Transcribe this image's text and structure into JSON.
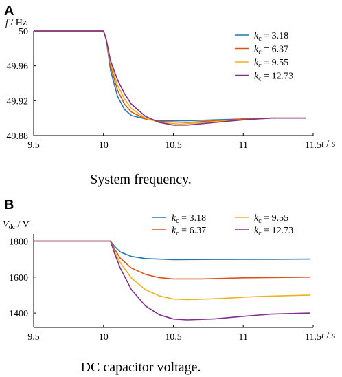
{
  "chart_data": [
    {
      "panel_label": "A",
      "type": "line",
      "caption": "System frequency.",
      "ylabel_symbol": "f",
      "ylabel_unit": " / Hz",
      "xlabel_symbol": "t",
      "xlabel_unit": " / s",
      "xlim": [
        9.5,
        11.5
      ],
      "ylim": [
        49.88,
        50.0
      ],
      "x_ticks": [
        "9.5",
        "10",
        "10.5",
        "11",
        "11.5"
      ],
      "x_tick_values": [
        9.5,
        10,
        10.5,
        11,
        11.5
      ],
      "y_ticks": [
        "50",
        "49.96",
        "49.92",
        "49.88"
      ],
      "y_tick_values": [
        50.0,
        49.96,
        49.92,
        49.88
      ],
      "grid": false,
      "legend_position": "top-right",
      "legend_layout": "column",
      "series": [
        {
          "name_sym": "k",
          "name_sub": "c",
          "name_val": " = 3.18",
          "color": "#1f77b4",
          "points": [
            [
              9.5,
              50.0
            ],
            [
              10.0,
              50.0
            ],
            [
              10.02,
              49.99
            ],
            [
              10.05,
              49.955
            ],
            [
              10.1,
              49.925
            ],
            [
              10.15,
              49.91
            ],
            [
              10.2,
              49.903
            ],
            [
              10.3,
              49.899
            ],
            [
              10.4,
              49.897
            ],
            [
              10.6,
              49.897
            ],
            [
              10.8,
              49.898
            ],
            [
              11.0,
              49.899
            ],
            [
              11.2,
              49.9
            ],
            [
              11.45,
              49.9
            ]
          ]
        },
        {
          "name_sym": "k",
          "name_sub": "c",
          "name_val": " = 6.37",
          "color": "#d95319",
          "points": [
            [
              9.5,
              50.0
            ],
            [
              10.0,
              50.0
            ],
            [
              10.02,
              49.99
            ],
            [
              10.05,
              49.96
            ],
            [
              10.1,
              49.932
            ],
            [
              10.15,
              49.916
            ],
            [
              10.2,
              49.907
            ],
            [
              10.3,
              49.899
            ],
            [
              10.4,
              49.896
            ],
            [
              10.6,
              49.895
            ],
            [
              10.8,
              49.897
            ],
            [
              11.0,
              49.899
            ],
            [
              11.2,
              49.9
            ],
            [
              11.45,
              49.9
            ]
          ]
        },
        {
          "name_sym": "k",
          "name_sub": "c",
          "name_val": " = 9.55",
          "color": "#edb120",
          "points": [
            [
              9.5,
              50.0
            ],
            [
              10.0,
              50.0
            ],
            [
              10.02,
              49.99
            ],
            [
              10.05,
              49.963
            ],
            [
              10.1,
              49.938
            ],
            [
              10.15,
              49.922
            ],
            [
              10.2,
              49.911
            ],
            [
              10.3,
              49.9
            ],
            [
              10.4,
              49.895
            ],
            [
              10.55,
              49.893
            ],
            [
              10.8,
              49.896
            ],
            [
              11.0,
              49.898
            ],
            [
              11.2,
              49.9
            ],
            [
              11.45,
              49.9
            ]
          ]
        },
        {
          "name_sym": "k",
          "name_sub": "c",
          "name_val": " = 12.73",
          "color": "#7e2f8e",
          "points": [
            [
              9.5,
              50.0
            ],
            [
              10.0,
              50.0
            ],
            [
              10.02,
              49.99
            ],
            [
              10.05,
              49.966
            ],
            [
              10.1,
              49.944
            ],
            [
              10.15,
              49.928
            ],
            [
              10.2,
              49.916
            ],
            [
              10.3,
              49.902
            ],
            [
              10.4,
              49.895
            ],
            [
              10.5,
              49.892
            ],
            [
              10.6,
              49.892
            ],
            [
              10.8,
              49.895
            ],
            [
              11.0,
              49.898
            ],
            [
              11.2,
              49.9
            ],
            [
              11.45,
              49.9
            ]
          ]
        }
      ]
    },
    {
      "panel_label": "B",
      "type": "line",
      "caption": "DC capacitor voltage.",
      "ylabel_symbol": "V",
      "ylabel_sub": "dc",
      "ylabel_unit": " / V",
      "xlabel_symbol": "t",
      "xlabel_unit": " / s",
      "xlim": [
        9.5,
        11.5
      ],
      "ylim": [
        1320,
        1840
      ],
      "x_ticks": [
        "9.5",
        "10",
        "10.5",
        "11",
        "11.5"
      ],
      "x_tick_values": [
        9.5,
        10,
        10.5,
        11,
        11.5
      ],
      "y_ticks": [
        "1800",
        "1600",
        "1400"
      ],
      "y_tick_values": [
        1800,
        1600,
        1400
      ],
      "grid": false,
      "legend_position": "top-right",
      "legend_layout": "two-columns",
      "series": [
        {
          "name_sym": "k",
          "name_sub": "c",
          "name_val": " = 3.18",
          "color": "#1f77b4",
          "points": [
            [
              9.5,
              1800
            ],
            [
              10.05,
              1800
            ],
            [
              10.08,
              1770
            ],
            [
              10.12,
              1740
            ],
            [
              10.2,
              1715
            ],
            [
              10.3,
              1703
            ],
            [
              10.5,
              1697
            ],
            [
              10.8,
              1698
            ],
            [
              11.2,
              1699
            ],
            [
              11.48,
              1700
            ]
          ]
        },
        {
          "name_sym": "k",
          "name_sub": "c",
          "name_val": " = 6.37",
          "color": "#d95319",
          "points": [
            [
              9.5,
              1800
            ],
            [
              10.05,
              1800
            ],
            [
              10.08,
              1755
            ],
            [
              10.12,
              1705
            ],
            [
              10.2,
              1650
            ],
            [
              10.3,
              1615
            ],
            [
              10.4,
              1597
            ],
            [
              10.5,
              1590
            ],
            [
              10.7,
              1590
            ],
            [
              11.0,
              1596
            ],
            [
              11.48,
              1600
            ]
          ]
        },
        {
          "name_sym": "k",
          "name_sub": "c",
          "name_val": " = 9.55",
          "color": "#edb120",
          "points": [
            [
              9.5,
              1800
            ],
            [
              10.05,
              1800
            ],
            [
              10.08,
              1740
            ],
            [
              10.12,
              1680
            ],
            [
              10.2,
              1595
            ],
            [
              10.3,
              1530
            ],
            [
              10.4,
              1495
            ],
            [
              10.5,
              1478
            ],
            [
              10.6,
              1475
            ],
            [
              10.8,
              1480
            ],
            [
              11.1,
              1492
            ],
            [
              11.48,
              1500
            ]
          ]
        },
        {
          "name_sym": "k",
          "name_sub": "c",
          "name_val": " = 12.73",
          "color": "#7e2f8e",
          "points": [
            [
              9.5,
              1800
            ],
            [
              10.05,
              1800
            ],
            [
              10.08,
              1730
            ],
            [
              10.12,
              1650
            ],
            [
              10.2,
              1530
            ],
            [
              10.3,
              1440
            ],
            [
              10.4,
              1390
            ],
            [
              10.5,
              1367
            ],
            [
              10.6,
              1362
            ],
            [
              10.8,
              1368
            ],
            [
              11.0,
              1382
            ],
            [
              11.2,
              1394
            ],
            [
              11.48,
              1400
            ]
          ]
        }
      ]
    }
  ]
}
